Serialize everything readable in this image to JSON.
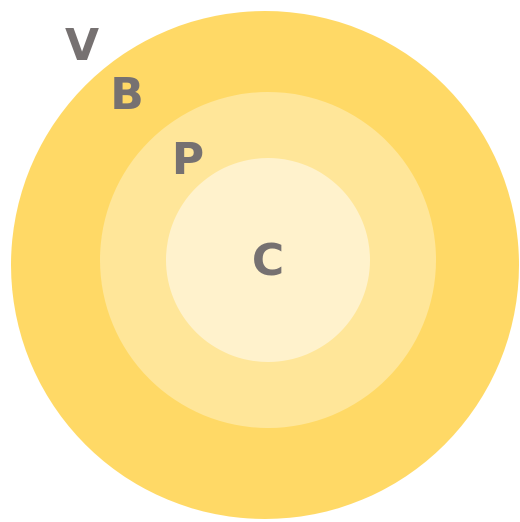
{
  "labels": [
    "V",
    "B",
    "P",
    "C"
  ]
}
